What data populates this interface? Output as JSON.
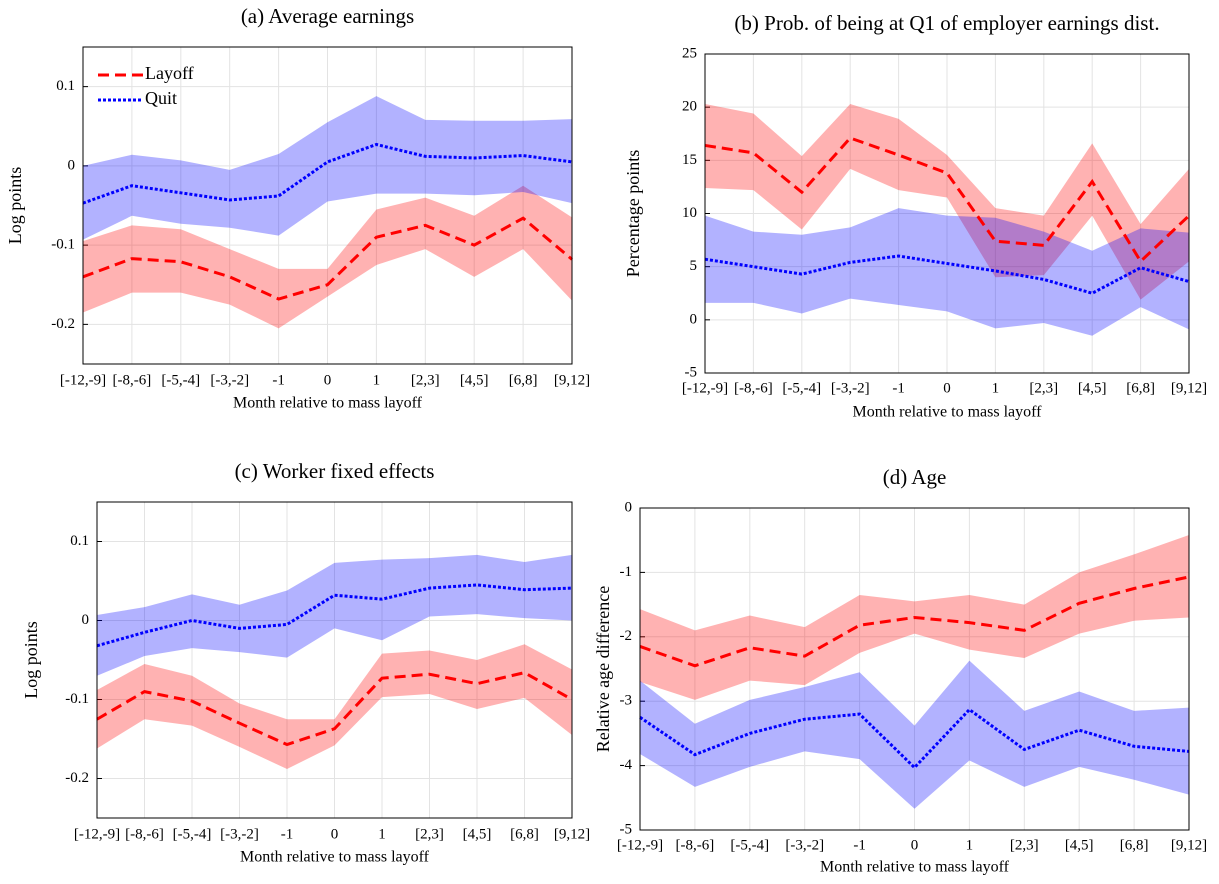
{
  "chart_data": [
    {
      "type": "line",
      "title": "(a) Average earnings",
      "xlabel": "Month relative to mass layoff",
      "ylabel": "Log points",
      "categories": [
        "[-12,-9]",
        "[-8,-6]",
        "[-5,-4]",
        "[-3,-2]",
        "-1",
        "0",
        "1",
        "[2,3]",
        "[4,5]",
        "[6,8]",
        "[9,12]"
      ],
      "ylim": [
        -0.25,
        0.15
      ],
      "yticks": [
        -0.2,
        -0.1,
        0,
        0.1
      ],
      "grid": true,
      "legend": "upper left",
      "series": [
        {
          "name": "Layoff",
          "color": "#ff0000",
          "linestyle": "dashed",
          "values": [
            -0.14,
            -0.117,
            -0.121,
            -0.14,
            -0.168,
            -0.15,
            -0.09,
            -0.075,
            -0.1,
            -0.066,
            -0.118
          ],
          "lower": [
            -0.185,
            -0.16,
            -0.16,
            -0.175,
            -0.205,
            -0.165,
            -0.125,
            -0.105,
            -0.14,
            -0.105,
            -0.17
          ],
          "upper": [
            -0.095,
            -0.075,
            -0.08,
            -0.105,
            -0.13,
            -0.13,
            -0.055,
            -0.04,
            -0.063,
            -0.025,
            -0.065
          ]
        },
        {
          "name": "Quit",
          "color": "#0000ff",
          "linestyle": "dotted",
          "values": [
            -0.047,
            -0.025,
            -0.034,
            -0.043,
            -0.038,
            0.005,
            0.027,
            0.012,
            0.01,
            0.013,
            0.005
          ],
          "lower": [
            -0.093,
            -0.063,
            -0.073,
            -0.078,
            -0.088,
            -0.045,
            -0.035,
            -0.035,
            -0.037,
            -0.033,
            -0.047
          ],
          "upper": [
            0,
            0.014,
            0.007,
            -0.005,
            0.015,
            0.055,
            0.088,
            0.058,
            0.057,
            0.057,
            0.059
          ]
        }
      ]
    },
    {
      "type": "line",
      "title": "(b) Prob. of being at Q1 of employer earnings dist.",
      "xlabel": "Month relative to mass layoff",
      "ylabel": "Percentage points",
      "categories": [
        "[-12,-9]",
        "[-8,-6]",
        "[-5,-4]",
        "[-3,-2]",
        "-1",
        "0",
        "1",
        "[2,3]",
        "[4,5]",
        "[6,8]",
        "[9,12]"
      ],
      "ylim": [
        -5,
        25
      ],
      "yticks": [
        -5,
        0,
        5,
        10,
        15,
        20,
        25
      ],
      "grid": true,
      "series": [
        {
          "color": "#ff0000",
          "linestyle": "dashed",
          "values": [
            16.4,
            15.7,
            12,
            17.1,
            15.5,
            13.8,
            7.4,
            7,
            13,
            5.5,
            9.8
          ],
          "lower": [
            12.4,
            12.2,
            8.5,
            14.2,
            12.2,
            11.5,
            4,
            4.2,
            9.8,
            1.9,
            5.5
          ],
          "upper": [
            20.3,
            19.4,
            15.4,
            20.3,
            18.9,
            15.5,
            10.5,
            9.8,
            16.6,
            9,
            14.2
          ]
        },
        {
          "color": "#0000ff",
          "linestyle": "dotted",
          "values": [
            5.7,
            5,
            4.3,
            5.4,
            6,
            5.3,
            4.6,
            3.8,
            2.5,
            4.9,
            3.6
          ],
          "lower": [
            1.6,
            1.6,
            0.6,
            2,
            1.4,
            0.8,
            -0.8,
            -0.3,
            -1.5,
            1.2,
            -0.9
          ],
          "upper": [
            9.8,
            8.3,
            8,
            8.7,
            10.5,
            9.8,
            9.6,
            8.3,
            6.5,
            8.6,
            8.2
          ]
        }
      ]
    },
    {
      "type": "line",
      "title": "(c) Worker fixed effects",
      "xlabel": "Month relative to mass layoff",
      "ylabel": "Log points",
      "categories": [
        "[-12,-9]",
        "[-8,-6]",
        "[-5,-4]",
        "[-3,-2]",
        "-1",
        "0",
        "1",
        "[2,3]",
        "[4,5]",
        "[6,8]",
        "[9,12]"
      ],
      "ylim": [
        -0.25,
        0.15
      ],
      "yticks": [
        -0.2,
        -0.1,
        0,
        0.1
      ],
      "grid": true,
      "series": [
        {
          "color": "#ff0000",
          "linestyle": "dashed",
          "values": [
            -0.125,
            -0.09,
            -0.102,
            -0.13,
            -0.157,
            -0.137,
            -0.073,
            -0.068,
            -0.08,
            -0.066,
            -0.1
          ],
          "lower": [
            -0.162,
            -0.125,
            -0.133,
            -0.16,
            -0.188,
            -0.158,
            -0.097,
            -0.093,
            -0.112,
            -0.098,
            -0.145
          ],
          "upper": [
            -0.088,
            -0.055,
            -0.07,
            -0.105,
            -0.125,
            -0.125,
            -0.042,
            -0.038,
            -0.05,
            -0.03,
            -0.062
          ]
        },
        {
          "color": "#0000ff",
          "linestyle": "dotted",
          "values": [
            -0.032,
            -0.015,
            0,
            -0.01,
            -0.005,
            0.032,
            0.027,
            0.041,
            0.045,
            0.039,
            0.041
          ],
          "lower": [
            -0.07,
            -0.045,
            -0.035,
            -0.04,
            -0.047,
            -0.01,
            -0.025,
            0.005,
            0.008,
            0.003,
            0
          ],
          "upper": [
            0.007,
            0.017,
            0.033,
            0.02,
            0.038,
            0.073,
            0.077,
            0.079,
            0.083,
            0.074,
            0.083
          ]
        }
      ]
    },
    {
      "type": "line",
      "title": "(d) Age",
      "xlabel": "Month relative to mass layoff",
      "ylabel": "Relative age difference",
      "categories": [
        "[-12,-9]",
        "[-8,-6]",
        "[-5,-4]",
        "[-3,-2]",
        "-1",
        "0",
        "1",
        "[2,3]",
        "[4,5]",
        "[6,8]",
        "[9,12]"
      ],
      "ylim": [
        -5,
        0
      ],
      "yticks": [
        -5,
        -4,
        -3,
        -2,
        -1,
        0
      ],
      "grid": true,
      "series": [
        {
          "color": "#ff0000",
          "linestyle": "dashed",
          "values": [
            -2.15,
            -2.45,
            -2.17,
            -2.3,
            -1.82,
            -1.7,
            -1.78,
            -1.9,
            -1.48,
            -1.25,
            -1.07
          ],
          "lower": [
            -2.7,
            -2.98,
            -2.68,
            -2.75,
            -2.25,
            -1.95,
            -2.2,
            -2.33,
            -1.95,
            -1.75,
            -1.7
          ],
          "upper": [
            -1.57,
            -1.9,
            -1.67,
            -1.85,
            -1.35,
            -1.45,
            -1.35,
            -1.5,
            -1.0,
            -0.72,
            -0.42
          ]
        },
        {
          "color": "#0000ff",
          "linestyle": "dotted",
          "values": [
            -3.25,
            -3.83,
            -3.5,
            -3.28,
            -3.2,
            -4.03,
            -3.13,
            -3.75,
            -3.45,
            -3.7,
            -3.78
          ],
          "lower": [
            -3.82,
            -4.33,
            -4.02,
            -3.78,
            -3.9,
            -4.67,
            -3.92,
            -4.33,
            -4.02,
            -4.22,
            -4.45
          ],
          "upper": [
            -2.68,
            -3.35,
            -2.98,
            -2.78,
            -2.55,
            -3.38,
            -2.37,
            -3.15,
            -2.85,
            -3.15,
            -3.1
          ]
        }
      ]
    }
  ]
}
